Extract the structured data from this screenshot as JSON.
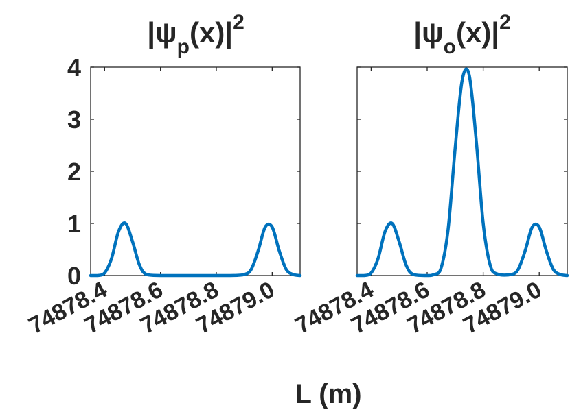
{
  "figure": {
    "xlabel": "L (m)"
  },
  "colors": {
    "series": "#0072BD",
    "axes": "#262626",
    "background": "#ffffff"
  },
  "chart_data": [
    {
      "type": "line",
      "title": {
        "base": "|ψ",
        "sub": "p",
        "mid": "(x)|",
        "sup": "2"
      },
      "xlim": [
        74878.35,
        74879.1
      ],
      "ylim": [
        0,
        4
      ],
      "xticks": [
        74878.4,
        74878.6,
        74878.8,
        74879.0
      ],
      "xtick_labels": [
        "74878.4",
        "74878.6",
        "74878.8",
        "74879.0"
      ],
      "yticks": [
        0,
        1,
        2,
        3,
        4
      ],
      "ytick_labels": [
        "0",
        "1",
        "2",
        "3",
        "4"
      ],
      "grid": false,
      "series": [
        {
          "x": [
            74878.35,
            74878.375,
            74878.4,
            74878.425,
            74878.45,
            74878.475,
            74878.5,
            74878.525,
            74878.55,
            74878.6,
            74878.7,
            74878.8,
            74878.85,
            74878.9,
            74878.925,
            74878.95,
            74878.975,
            74879.0,
            74879.025,
            74879.05,
            74879.075,
            74879.1
          ],
          "y": [
            0.0,
            0.0,
            0.05,
            0.33,
            0.85,
            1.0,
            0.65,
            0.2,
            0.02,
            0.0,
            0.0,
            0.0,
            0.0,
            0.02,
            0.12,
            0.48,
            0.93,
            0.93,
            0.48,
            0.12,
            0.02,
            0.0
          ]
        }
      ]
    },
    {
      "type": "line",
      "title": {
        "base": "|ψ",
        "sub": "o",
        "mid": "(x)|",
        "sup": "2"
      },
      "xlim": [
        74878.35,
        74879.1
      ],
      "ylim": [
        0,
        4
      ],
      "xticks": [
        74878.4,
        74878.6,
        74878.8,
        74879.0
      ],
      "xtick_labels": [
        "74878.4",
        "74878.6",
        "74878.8",
        "74879.0"
      ],
      "yticks": [
        0,
        1,
        2,
        3,
        4
      ],
      "ytick_labels": [
        "",
        "",
        "",
        "",
        ""
      ],
      "grid": false,
      "series": [
        {
          "x": [
            74878.35,
            74878.375,
            74878.4,
            74878.425,
            74878.45,
            74878.475,
            74878.5,
            74878.525,
            74878.55,
            74878.6,
            74878.625,
            74878.65,
            74878.675,
            74878.7,
            74878.725,
            74878.75,
            74878.775,
            74878.8,
            74878.825,
            74878.85,
            74878.9,
            74878.925,
            74878.95,
            74878.975,
            74879.0,
            74879.025,
            74879.05,
            74879.075,
            74879.1
          ],
          "y": [
            0.0,
            0.0,
            0.05,
            0.33,
            0.85,
            1.0,
            0.65,
            0.2,
            0.02,
            0.0,
            0.02,
            0.15,
            0.9,
            2.45,
            3.75,
            3.85,
            2.6,
            1.0,
            0.2,
            0.03,
            0.02,
            0.12,
            0.48,
            0.93,
            0.93,
            0.48,
            0.12,
            0.02,
            0.0
          ]
        }
      ]
    }
  ]
}
